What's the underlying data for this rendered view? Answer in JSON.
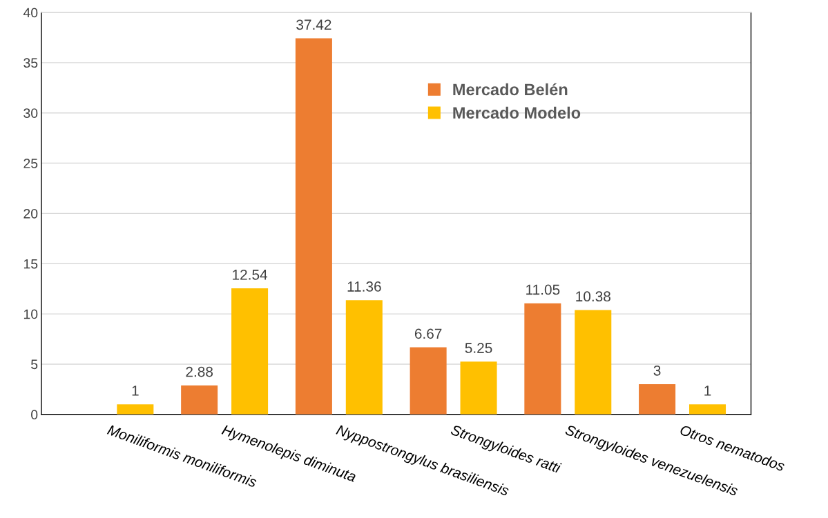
{
  "chart_data": {
    "type": "bar",
    "categories": [
      "Moniliformis moniliformis",
      "Hymenolepis diminuta",
      "Nyppostrongylus brasiliensis",
      "Strongyloides ratti",
      "Strongyloides venezuelensis",
      "Otros nematodos"
    ],
    "series": [
      {
        "name": "Mercado Belén",
        "color": "#ed7d31",
        "values": [
          null,
          2.88,
          37.42,
          6.67,
          11.05,
          3
        ]
      },
      {
        "name": "Mercado Modelo",
        "color": "#ffc000",
        "values": [
          1,
          12.54,
          11.36,
          5.25,
          10.38,
          1
        ]
      }
    ],
    "ylim": [
      0,
      40
    ],
    "yticks": [
      0,
      5,
      10,
      15,
      20,
      25,
      30,
      35,
      40
    ],
    "grid": "y",
    "legend": "top",
    "data_labels": true
  }
}
